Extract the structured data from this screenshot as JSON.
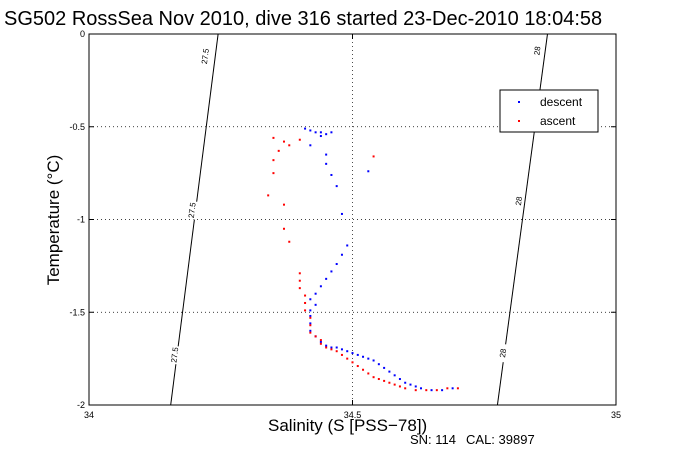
{
  "title": "SG502 RossSea Nov 2010, dive 316 started 23-Dec-2010 18:04:58",
  "serial": {
    "sn": "SN: 114",
    "cal": "CAL: 39897"
  },
  "chart_data": {
    "type": "scatter",
    "xlabel": "Salinity (S [PSS−78])",
    "ylabel": "Temperature (°C)",
    "xlim": [
      34,
      35
    ],
    "ylim": [
      -2,
      0
    ],
    "xticks": [
      "34",
      "34.5",
      "35"
    ],
    "xtick_values": [
      34,
      34.5,
      35
    ],
    "yticks": [
      "0",
      "-0.5",
      "-1",
      "-1.5",
      "-2"
    ],
    "ytick_values": [
      0,
      -0.5,
      -1,
      -1.5,
      -2
    ],
    "grid": true,
    "legend": "top-right",
    "series": [
      {
        "name": "descent",
        "color": "#0000ff",
        "points": [
          [
            34.41,
            -0.51
          ],
          [
            34.42,
            -0.52
          ],
          [
            34.43,
            -0.53
          ],
          [
            34.44,
            -0.53
          ],
          [
            34.45,
            -0.54
          ],
          [
            34.46,
            -0.53
          ],
          [
            34.44,
            -0.55
          ],
          [
            34.42,
            -0.6
          ],
          [
            34.45,
            -0.65
          ],
          [
            34.45,
            -0.7
          ],
          [
            34.46,
            -0.76
          ],
          [
            34.47,
            -0.82
          ],
          [
            34.48,
            -0.97
          ],
          [
            34.53,
            -0.74
          ],
          [
            34.49,
            -1.14
          ],
          [
            34.48,
            -1.19
          ],
          [
            34.47,
            -1.24
          ],
          [
            34.46,
            -1.28
          ],
          [
            34.45,
            -1.32
          ],
          [
            34.44,
            -1.36
          ],
          [
            34.43,
            -1.4
          ],
          [
            34.42,
            -1.43
          ],
          [
            34.43,
            -1.46
          ],
          [
            34.42,
            -1.49
          ],
          [
            34.42,
            -1.52
          ],
          [
            34.42,
            -1.56
          ],
          [
            34.42,
            -1.6
          ],
          [
            34.43,
            -1.63
          ],
          [
            34.44,
            -1.66
          ],
          [
            34.45,
            -1.68
          ],
          [
            34.46,
            -1.69
          ],
          [
            34.47,
            -1.69
          ],
          [
            34.48,
            -1.7
          ],
          [
            34.49,
            -1.71
          ],
          [
            34.5,
            -1.72
          ],
          [
            34.51,
            -1.73
          ],
          [
            34.52,
            -1.74
          ],
          [
            34.53,
            -1.75
          ],
          [
            34.54,
            -1.76
          ],
          [
            34.55,
            -1.78
          ],
          [
            34.56,
            -1.8
          ],
          [
            34.57,
            -1.82
          ],
          [
            34.58,
            -1.84
          ],
          [
            34.59,
            -1.86
          ],
          [
            34.6,
            -1.88
          ],
          [
            34.61,
            -1.89
          ],
          [
            34.62,
            -1.9
          ],
          [
            34.63,
            -1.91
          ],
          [
            34.65,
            -1.92
          ],
          [
            34.67,
            -1.92
          ],
          [
            34.69,
            -1.91
          ]
        ]
      },
      {
        "name": "ascent",
        "color": "#ff0000",
        "points": [
          [
            34.35,
            -0.56
          ],
          [
            34.37,
            -0.58
          ],
          [
            34.38,
            -0.6
          ],
          [
            34.36,
            -0.63
          ],
          [
            34.35,
            -0.68
          ],
          [
            34.35,
            -0.75
          ],
          [
            34.34,
            -0.87
          ],
          [
            34.37,
            -0.92
          ],
          [
            34.37,
            -1.05
          ],
          [
            34.38,
            -1.12
          ],
          [
            34.54,
            -0.66
          ],
          [
            34.4,
            -1.29
          ],
          [
            34.4,
            -1.33
          ],
          [
            34.4,
            -1.37
          ],
          [
            34.41,
            -1.41
          ],
          [
            34.41,
            -1.45
          ],
          [
            34.41,
            -1.49
          ],
          [
            34.42,
            -1.53
          ],
          [
            34.42,
            -1.57
          ],
          [
            34.42,
            -1.61
          ],
          [
            34.43,
            -1.63
          ],
          [
            34.44,
            -1.65
          ],
          [
            34.44,
            -1.67
          ],
          [
            34.45,
            -1.69
          ],
          [
            34.46,
            -1.7
          ],
          [
            34.47,
            -1.71
          ],
          [
            34.48,
            -1.73
          ],
          [
            34.49,
            -1.75
          ],
          [
            34.5,
            -1.77
          ],
          [
            34.51,
            -1.79
          ],
          [
            34.52,
            -1.81
          ],
          [
            34.53,
            -1.83
          ],
          [
            34.54,
            -1.85
          ],
          [
            34.55,
            -1.86
          ],
          [
            34.56,
            -1.87
          ],
          [
            34.57,
            -1.88
          ],
          [
            34.58,
            -1.89
          ],
          [
            34.59,
            -1.9
          ],
          [
            34.6,
            -1.91
          ],
          [
            34.62,
            -1.92
          ],
          [
            34.64,
            -1.92
          ],
          [
            34.66,
            -1.92
          ],
          [
            34.68,
            -1.91
          ],
          [
            34.7,
            -1.91
          ],
          [
            34.4,
            -0.57
          ]
        ]
      }
    ],
    "isopycnals": [
      {
        "label": "27.5",
        "points": [
          [
            34.155,
            -2
          ],
          [
            34.245,
            0
          ]
        ],
        "label_positions": [
          [
            34.22,
            -0.12
          ],
          [
            34.195,
            -0.95
          ],
          [
            34.162,
            -1.73
          ]
        ]
      },
      {
        "label": "28",
        "points": [
          [
            34.775,
            -2
          ],
          [
            34.87,
            0
          ]
        ],
        "label_positions": [
          [
            34.85,
            -0.09
          ],
          [
            34.815,
            -0.9
          ],
          [
            34.785,
            -1.72
          ]
        ]
      }
    ]
  }
}
